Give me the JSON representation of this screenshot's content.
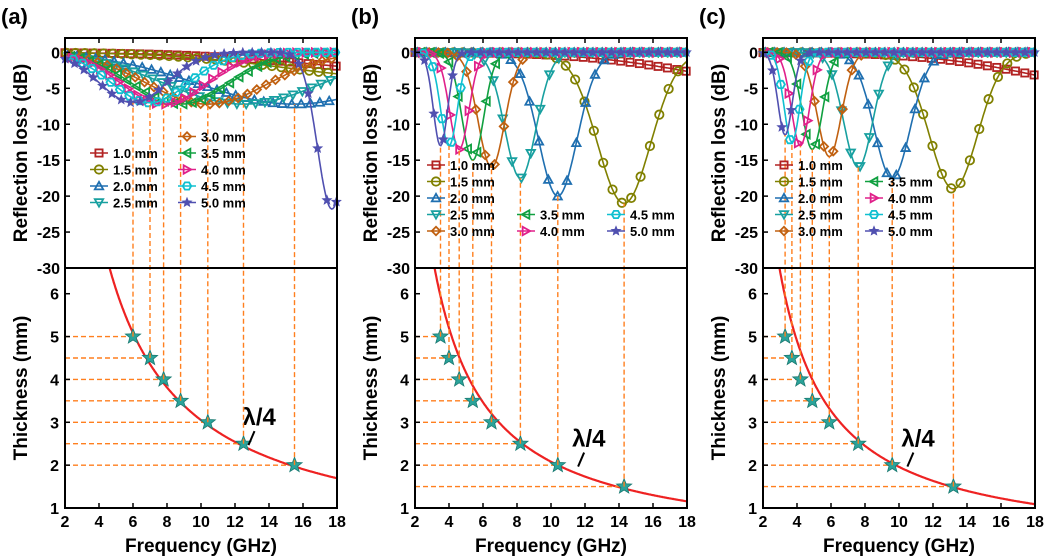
{
  "figure": {
    "legend_markers": {
      "1.0 mm": "square",
      "1.5 mm": "circle",
      "2.0 mm": "triangle-up",
      "2.5 mm": "triangle-down",
      "3.0 mm": "diamond",
      "3.5 mm": "triangle-left",
      "4.0 mm": "triangle-right",
      "4.5 mm": "hexagon",
      "5.0 mm": "star"
    },
    "colors": {
      "1.0 mm": "#b22222",
      "1.5 mm": "#808000",
      "2.0 mm": "#1f6fb0",
      "2.5 mm": "#18a0a0",
      "3.0 mm": "#c06010",
      "3.5 mm": "#10a040",
      "4.0 mm": "#e0208a",
      "4.5 mm": "#10c0d0",
      "5.0 mm": "#5050b0",
      "quarter_wave_curve": "#ee2222",
      "guide_lines": "#ff7f1e",
      "thickness_markers": "#2aa39a"
    }
  },
  "chart_data": [
    {
      "panel_label": "(a)",
      "type": "line",
      "top": {
        "ylabel": "Reflection loss (dB)",
        "ylim": [
          -30,
          2
        ],
        "yticks": [
          0,
          -5,
          -10,
          -15,
          -20,
          -25,
          -30
        ],
        "legend_columns": [
          [
            "1.0 mm",
            "1.5 mm",
            "2.0 mm",
            "2.5 mm"
          ],
          [
            "3.0 mm",
            "3.5 mm",
            "4.0 mm",
            "4.5 mm",
            "5.0 mm"
          ]
        ],
        "series": [
          {
            "name": "1.0 mm",
            "f0": 26,
            "depth": 3,
            "width": 12
          },
          {
            "name": "1.5 mm",
            "f0": 22,
            "depth": 3.5,
            "width": 10
          },
          {
            "name": "2.0 mm",
            "f0": 15.5,
            "depth": 7.2,
            "width": 8
          },
          {
            "name": "2.5 mm",
            "f0": 12.5,
            "depth": 7.2,
            "width": 6.5
          },
          {
            "name": "3.0 mm",
            "f0": 10.4,
            "depth": 7.2,
            "width": 5
          },
          {
            "name": "3.5 mm",
            "f0": 8.8,
            "depth": 7.2,
            "width": 4
          },
          {
            "name": "4.0 mm",
            "f0": 7.8,
            "depth": 7.2,
            "width": 3.5
          },
          {
            "name": "4.5 mm",
            "f0": 7.0,
            "depth": 7.0,
            "width": 3.2
          },
          {
            "name": "5.0 mm",
            "f0": 6.0,
            "depth": 7.0,
            "width": 2.8,
            "second_dip": {
              "f0": 17.7,
              "depth": 21.8,
              "width": 1.2
            }
          }
        ]
      },
      "bottom": {
        "xlabel": "Frequency (GHz)",
        "ylabel": "Thickness (mm)",
        "xlim": [
          2,
          18
        ],
        "xticks": [
          2,
          4,
          6,
          8,
          10,
          12,
          14,
          16,
          18
        ],
        "ylim": [
          1,
          6.6
        ],
        "yticks": [
          1,
          2,
          3,
          4,
          5,
          6
        ],
        "lambda_label": "λ/4",
        "curve_constant": 30.5,
        "points": [
          [
            6.0,
            5.0
          ],
          [
            7.0,
            4.5
          ],
          [
            7.8,
            4.0
          ],
          [
            8.8,
            3.5
          ],
          [
            10.4,
            3.0
          ],
          [
            12.5,
            2.5
          ],
          [
            15.5,
            2.0
          ]
        ]
      }
    },
    {
      "panel_label": "(b)",
      "type": "line",
      "top": {
        "ylabel": "Reflection loss (dB)",
        "ylim": [
          -30,
          2
        ],
        "yticks": [
          0,
          -5,
          -10,
          -15,
          -20,
          -25,
          -30
        ],
        "legend_columns": [
          [
            "1.0 mm",
            "1.5 mm",
            "2.0 mm",
            "2.5 mm",
            "3.0 mm"
          ],
          [
            "3.5 mm",
            "4.0 mm"
          ],
          [
            "4.5 mm",
            "5.0 mm"
          ]
        ],
        "series": [
          {
            "name": "1.0 mm",
            "f0": 26,
            "depth": 5,
            "width": 10
          },
          {
            "name": "1.5 mm",
            "f0": 14.3,
            "depth": 21,
            "width": 2.2
          },
          {
            "name": "2.0 mm",
            "f0": 10.4,
            "depth": 20,
            "width": 1.6
          },
          {
            "name": "2.5 mm",
            "f0": 8.2,
            "depth": 17.5,
            "width": 1.3
          },
          {
            "name": "3.0 mm",
            "f0": 6.5,
            "depth": 16,
            "width": 1.1
          },
          {
            "name": "3.5 mm",
            "f0": 5.4,
            "depth": 15,
            "width": 0.9
          },
          {
            "name": "4.0 mm",
            "f0": 4.6,
            "depth": 13.5,
            "width": 0.8
          },
          {
            "name": "4.5 mm",
            "f0": 4.0,
            "depth": 13,
            "width": 0.7
          },
          {
            "name": "5.0 mm",
            "f0": 3.5,
            "depth": 13,
            "width": 0.6
          }
        ]
      },
      "bottom": {
        "xlabel": "Frequency (GHz)",
        "ylabel": "Thickness (mm)",
        "xlim": [
          2,
          18
        ],
        "xticks": [
          2,
          4,
          6,
          8,
          10,
          12,
          14,
          16,
          18
        ],
        "ylim": [
          1,
          6.6
        ],
        "yticks": [
          1,
          2,
          3,
          4,
          5,
          6
        ],
        "lambda_label": "λ/4",
        "curve_constant": 20.8,
        "points": [
          [
            3.5,
            5.0
          ],
          [
            4.0,
            4.5
          ],
          [
            4.6,
            4.0
          ],
          [
            5.4,
            3.5
          ],
          [
            6.5,
            3.0
          ],
          [
            8.2,
            2.5
          ],
          [
            10.4,
            2.0
          ],
          [
            14.3,
            1.5
          ]
        ]
      }
    },
    {
      "panel_label": "(c)",
      "type": "line",
      "top": {
        "ylabel": "Reflection loss (dB)",
        "ylim": [
          -30,
          2
        ],
        "yticks": [
          0,
          -5,
          -10,
          -15,
          -20,
          -25,
          -30
        ],
        "legend_columns": [
          [
            "1.0 mm",
            "1.5 mm",
            "2.0 mm",
            "2.5 mm",
            "3.0 mm"
          ],
          [
            "3.5 mm",
            "4.0 mm",
            "4.5 mm",
            "5.0 mm"
          ]
        ],
        "series": [
          {
            "name": "1.0 mm",
            "f0": 26,
            "depth": 6,
            "width": 10
          },
          {
            "name": "1.5 mm",
            "f0": 13.2,
            "depth": 19,
            "width": 2.0
          },
          {
            "name": "2.0 mm",
            "f0": 9.6,
            "depth": 17.5,
            "width": 1.5
          },
          {
            "name": "2.5 mm",
            "f0": 7.6,
            "depth": 16,
            "width": 1.2
          },
          {
            "name": "3.0 mm",
            "f0": 5.9,
            "depth": 14.5,
            "width": 1.0
          },
          {
            "name": "3.5 mm",
            "f0": 4.9,
            "depth": 13.5,
            "width": 0.85
          },
          {
            "name": "4.0 mm",
            "f0": 4.2,
            "depth": 13,
            "width": 0.75
          },
          {
            "name": "4.5 mm",
            "f0": 3.7,
            "depth": 12.5,
            "width": 0.65
          },
          {
            "name": "5.0 mm",
            "f0": 3.3,
            "depth": 11.5,
            "width": 0.6
          }
        ]
      },
      "bottom": {
        "xlabel": "Frequency (GHz)",
        "ylabel": "Thickness (mm)",
        "xlim": [
          2,
          18
        ],
        "xticks": [
          2,
          4,
          6,
          8,
          10,
          12,
          14,
          16,
          18
        ],
        "ylim": [
          1,
          6.6
        ],
        "yticks": [
          1,
          2,
          3,
          4,
          5,
          6
        ],
        "lambda_label": "λ/4",
        "curve_constant": 19.6,
        "points": [
          [
            3.3,
            5.0
          ],
          [
            3.7,
            4.5
          ],
          [
            4.2,
            4.0
          ],
          [
            4.9,
            3.5
          ],
          [
            5.9,
            3.0
          ],
          [
            7.6,
            2.5
          ],
          [
            9.6,
            2.0
          ],
          [
            13.2,
            1.5
          ]
        ]
      }
    }
  ]
}
